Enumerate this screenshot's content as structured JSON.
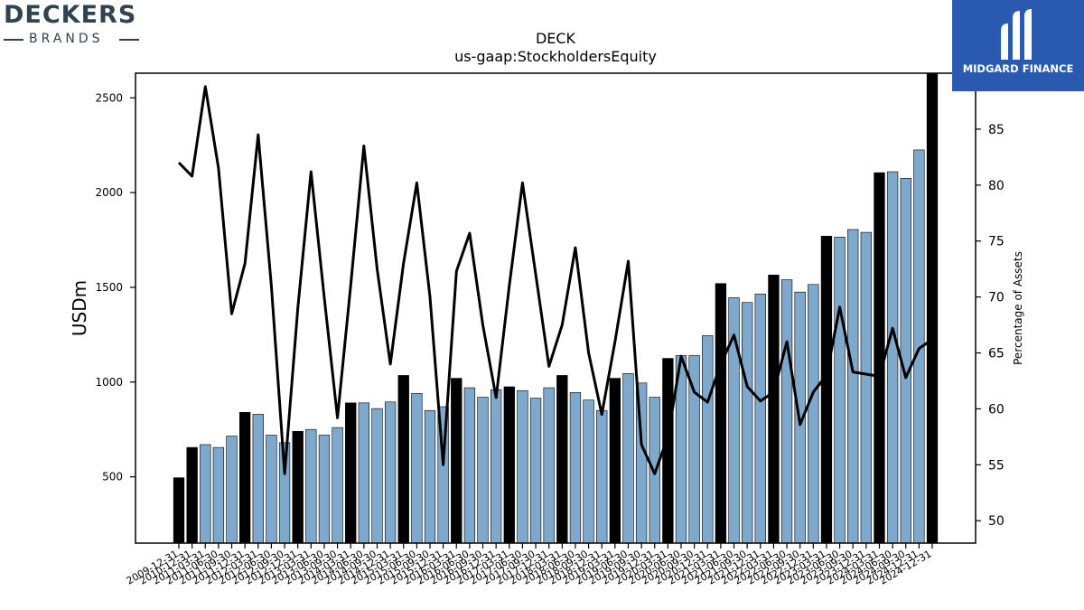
{
  "logos": {
    "left_word": "DECKERS",
    "left_sub": "BRANDS",
    "right_name": "MIDGARD FINANCE"
  },
  "colors": {
    "bar_annual": "#000000",
    "bar_quarterly": "#7ea9cc",
    "line": "#000000",
    "right_logo_bg": "#2a5ab0"
  },
  "chart_data": {
    "type": "bar",
    "title": "DECK",
    "subtitle": "us-gaap:StockholdersEquity",
    "ylabel": "USDm",
    "y2label": "Percentage of Assets",
    "ylim": [
      150,
      2630
    ],
    "y2lim": [
      48,
      90
    ],
    "yticks": [
      500,
      1000,
      1500,
      2000,
      2500
    ],
    "y2ticks": [
      50,
      55,
      60,
      65,
      70,
      75,
      80,
      85
    ],
    "categories": [
      "2009-12-31",
      "2010-12-31",
      "2011-03-31",
      "2011-06-30",
      "2011-09-30",
      "2011-12-31",
      "2012-03-31",
      "2012-06-30",
      "2012-09-30",
      "2012-12-31",
      "2013-03-31",
      "2013-06-30",
      "2013-09-30",
      "2014-03-31",
      "2014-06-30",
      "2014-09-30",
      "2014-12-31",
      "2015-03-31",
      "2015-06-30",
      "2015-09-30",
      "2015-12-31",
      "2016-03-31",
      "2016-06-30",
      "2016-09-30",
      "2016-12-31",
      "2017-03-31",
      "2017-06-30",
      "2017-09-30",
      "2017-12-31",
      "2018-03-31",
      "2018-06-30",
      "2018-09-30",
      "2018-12-31",
      "2019-03-31",
      "2019-06-30",
      "2019-09-30",
      "2019-12-31",
      "2020-03-31",
      "2020-06-30",
      "2020-09-30",
      "2020-12-31",
      "2021-03-31",
      "2021-06-30",
      "2021-09-30",
      "2021-12-31",
      "2022-03-31",
      "2022-06-30",
      "2022-09-30",
      "2022-12-31",
      "2023-03-31",
      "2023-06-30",
      "2023-09-30",
      "2023-12-31",
      "2024-03-31",
      "2024-06-30",
      "2024-09-30",
      "2024-12-31",
      "2024-12-31"
    ],
    "series": [
      {
        "type": "bar",
        "annual": [
          true,
          true,
          false,
          false,
          false,
          true,
          false,
          false,
          false,
          true,
          false,
          false,
          false,
          true,
          false,
          false,
          false,
          true,
          false,
          false,
          false,
          true,
          false,
          false,
          false,
          true,
          false,
          false,
          false,
          true,
          false,
          false,
          false,
          true,
          false,
          false,
          false,
          true,
          false,
          false,
          false,
          true,
          false,
          false,
          false,
          true,
          false,
          false,
          false,
          true,
          false,
          false,
          false,
          true,
          false,
          false,
          false,
          true
        ],
        "values": [
          495,
          655,
          670,
          655,
          715,
          840,
          830,
          720,
          680,
          740,
          750,
          720,
          760,
          890,
          890,
          860,
          895,
          1035,
          940,
          850,
          870,
          1020,
          970,
          920,
          960,
          975,
          955,
          915,
          970,
          1035,
          945,
          905,
          850,
          1020,
          1045,
          995,
          920,
          1125,
          1140,
          1140,
          1245,
          1520,
          1445,
          1420,
          1465,
          1565,
          1540,
          1475,
          1515,
          1770,
          1765,
          1805,
          1790,
          2105,
          2110,
          2075,
          2225,
          2630
        ]
      },
      {
        "type": "line",
        "values": [
          82.0,
          80.8,
          88.8,
          81.5,
          68.5,
          73.0,
          84.5,
          71.0,
          54.2,
          69.0,
          81.2,
          70.0,
          59.2,
          71.0,
          83.5,
          72.5,
          64.0,
          73.0,
          80.2,
          70.0,
          55.0,
          72.3,
          75.7,
          67.5,
          61.0,
          71.0,
          80.2,
          72.0,
          63.8,
          67.5,
          74.4,
          65.0,
          59.5,
          66.0,
          73.2,
          56.8,
          54.2,
          57.5,
          64.7,
          61.5,
          60.6,
          64.0,
          66.6,
          62.0,
          60.7,
          61.5,
          66.0,
          58.6,
          61.5,
          63.0,
          69.1,
          63.3,
          63.1,
          62.9,
          67.2,
          62.8,
          65.4,
          66.2
        ]
      }
    ]
  }
}
